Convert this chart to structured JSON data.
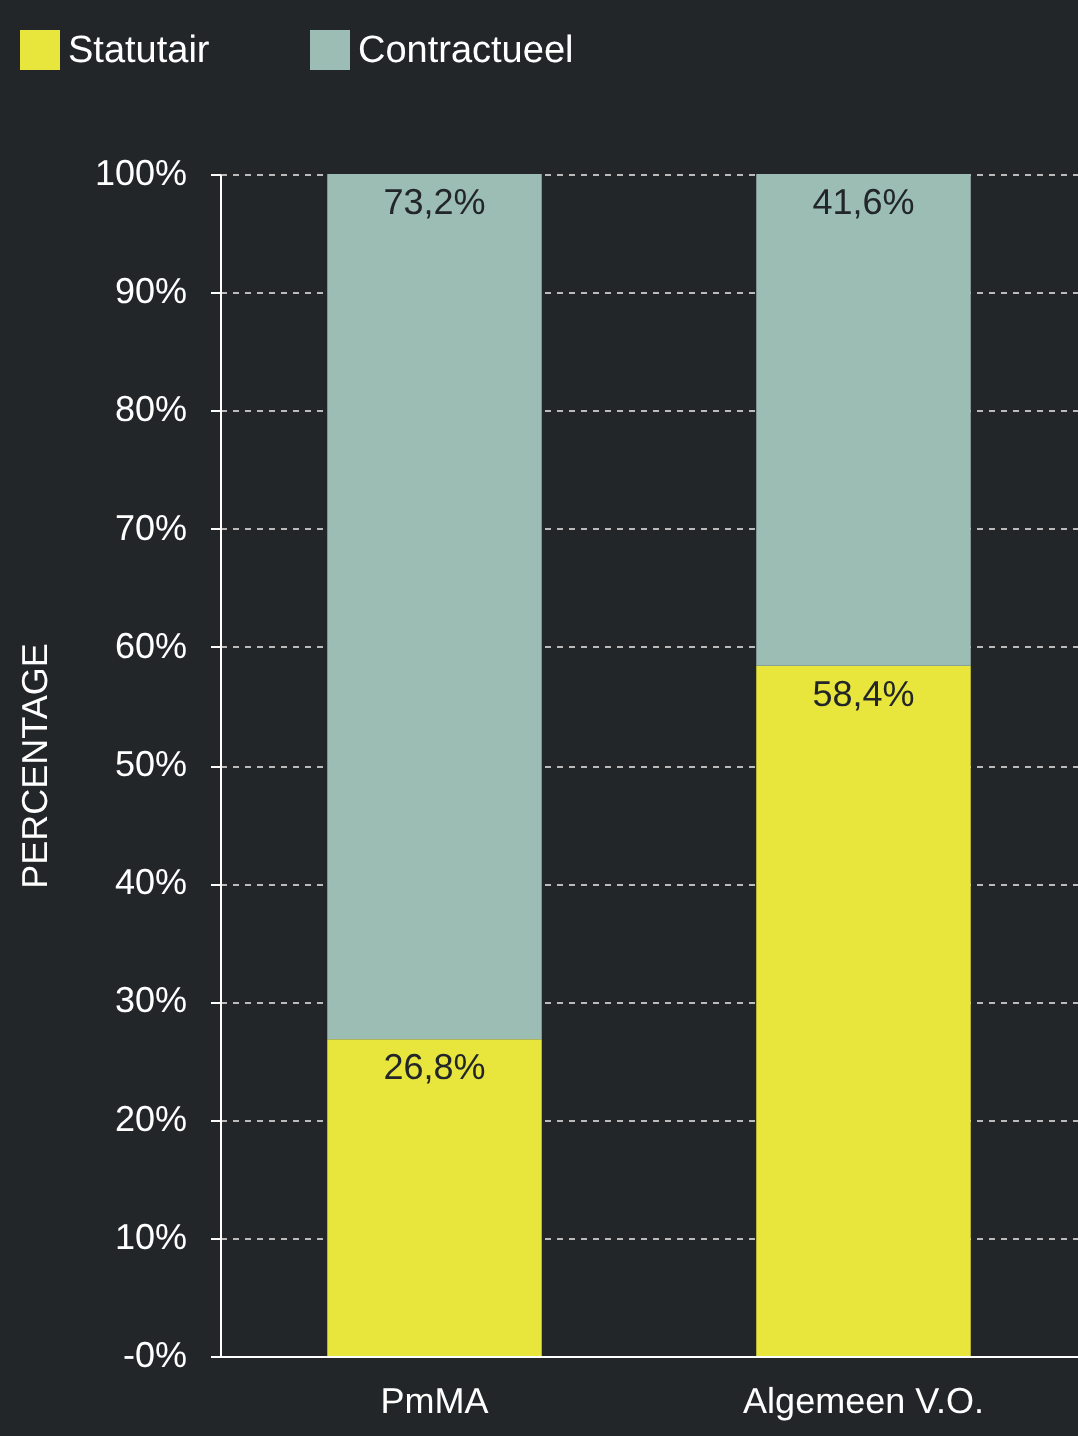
{
  "chart_data": {
    "type": "bar",
    "stacked": true,
    "ylabel": "PERCENTAGE",
    "categories": [
      "PmMA",
      "Algemeen V.O."
    ],
    "series": [
      {
        "name": "Statutair",
        "color": "#e8e53c",
        "values": [
          26.8,
          58.4
        ],
        "value_labels": [
          "26,8%",
          "58,4%"
        ]
      },
      {
        "name": "Contractueel",
        "color": "#9cbdb4",
        "values": [
          73.2,
          41.6
        ],
        "value_labels": [
          "73,2%",
          "41,6%"
        ]
      }
    ],
    "ylim": [
      0,
      100
    ],
    "yticks": [
      {
        "value": 0,
        "label": "-0%"
      },
      {
        "value": 10,
        "label": "10%"
      },
      {
        "value": 20,
        "label": "20%"
      },
      {
        "value": 30,
        "label": "30%"
      },
      {
        "value": 40,
        "label": "40%"
      },
      {
        "value": 50,
        "label": "50%"
      },
      {
        "value": 60,
        "label": "60%"
      },
      {
        "value": 70,
        "label": "70%"
      },
      {
        "value": 80,
        "label": "80%"
      },
      {
        "value": 90,
        "label": "90%"
      },
      {
        "value": 100,
        "label": "100%"
      }
    ],
    "grid": "y",
    "legend": "top left"
  }
}
